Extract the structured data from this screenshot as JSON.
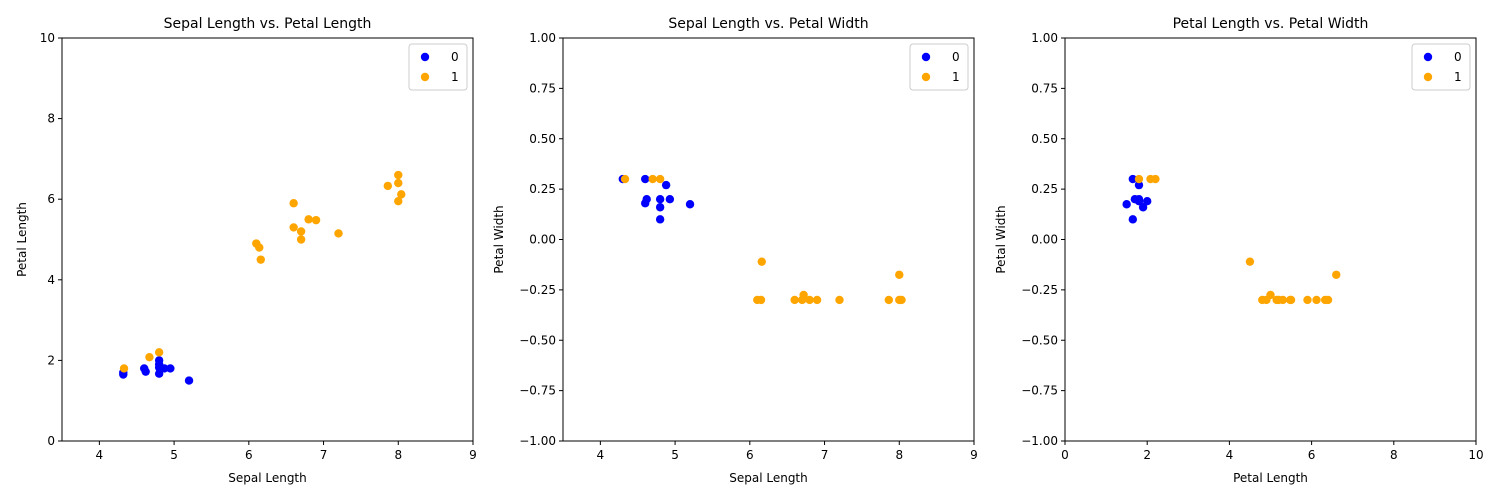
{
  "chart_data": [
    {
      "type": "scatter",
      "title": "Sepal Length vs. Petal Length",
      "xlabel": "Sepal Length",
      "ylabel": "Petal Length",
      "xlim": [
        3.5,
        9
      ],
      "ylim": [
        0,
        10
      ],
      "xticks": [
        4,
        5,
        6,
        7,
        8,
        9
      ],
      "yticks": [
        0,
        2,
        4,
        6,
        8,
        10
      ],
      "xtick_labels": [
        "4",
        "5",
        "6",
        "7",
        "8",
        "9"
      ],
      "ytick_labels": [
        "0",
        "2",
        "4",
        "6",
        "8",
        "10"
      ],
      "legend_position": "top-right",
      "grid": false,
      "series": [
        {
          "name": "0",
          "color": "#0000ff",
          "points": [
            [
              4.32,
              1.65
            ],
            [
              4.32,
              1.7
            ],
            [
              4.6,
              1.8
            ],
            [
              4.62,
              1.72
            ],
            [
              4.8,
              2.0
            ],
            [
              4.8,
              1.9
            ],
            [
              4.8,
              1.82
            ],
            [
              4.8,
              1.67
            ],
            [
              4.87,
              1.8
            ],
            [
              4.95,
              1.8
            ],
            [
              5.2,
              1.5
            ]
          ]
        },
        {
          "name": "1",
          "color": "#ffa500",
          "points": [
            [
              4.33,
              1.8
            ],
            [
              4.67,
              2.08
            ],
            [
              4.8,
              2.2
            ],
            [
              6.1,
              4.9
            ],
            [
              6.14,
              4.8
            ],
            [
              6.16,
              4.5
            ],
            [
              6.6,
              5.9
            ],
            [
              6.6,
              5.3
            ],
            [
              6.7,
              5.2
            ],
            [
              6.7,
              5.0
            ],
            [
              6.8,
              5.5
            ],
            [
              6.9,
              5.48
            ],
            [
              7.2,
              5.15
            ],
            [
              7.86,
              6.33
            ],
            [
              8.0,
              6.6
            ],
            [
              8.0,
              6.4
            ],
            [
              8.0,
              5.95
            ],
            [
              8.04,
              6.12
            ]
          ]
        }
      ]
    },
    {
      "type": "scatter",
      "title": "Sepal Length vs. Petal Width",
      "xlabel": "Sepal Length",
      "ylabel": "Petal Width",
      "xlim": [
        3.5,
        9
      ],
      "ylim": [
        -1,
        1
      ],
      "xticks": [
        4,
        5,
        6,
        7,
        8,
        9
      ],
      "yticks": [
        -1,
        -0.75,
        -0.5,
        -0.25,
        0,
        0.25,
        0.5,
        0.75,
        1
      ],
      "xtick_labels": [
        "4",
        "5",
        "6",
        "7",
        "8",
        "9"
      ],
      "ytick_labels": [
        "−1.00",
        "−0.75",
        "−0.50",
        "−0.25",
        "0.00",
        "0.25",
        "0.50",
        "0.75",
        "1.00"
      ],
      "legend_position": "top-right",
      "grid": false,
      "series": [
        {
          "name": "0",
          "color": "#0000ff",
          "points": [
            [
              4.3,
              0.3
            ],
            [
              4.6,
              0.3
            ],
            [
              4.62,
              0.2
            ],
            [
              4.6,
              0.18
            ],
            [
              4.8,
              0.2
            ],
            [
              4.8,
              0.16
            ],
            [
              4.8,
              0.1
            ],
            [
              4.88,
              0.27
            ],
            [
              4.93,
              0.2
            ],
            [
              5.2,
              0.175
            ]
          ]
        },
        {
          "name": "1",
          "color": "#ffa500",
          "points": [
            [
              4.33,
              0.3
            ],
            [
              4.7,
              0.3
            ],
            [
              4.8,
              0.3
            ],
            [
              6.16,
              -0.11
            ],
            [
              6.1,
              -0.3
            ],
            [
              6.15,
              -0.3
            ],
            [
              6.6,
              -0.3
            ],
            [
              6.7,
              -0.3
            ],
            [
              6.72,
              -0.275
            ],
            [
              6.8,
              -0.3
            ],
            [
              6.9,
              -0.3
            ],
            [
              7.2,
              -0.3
            ],
            [
              7.86,
              -0.3
            ],
            [
              8.0,
              -0.3
            ],
            [
              8.03,
              -0.3
            ],
            [
              8.0,
              -0.175
            ]
          ]
        }
      ]
    },
    {
      "type": "scatter",
      "title": "Petal Length vs. Petal Width",
      "xlabel": "Petal Length",
      "ylabel": "Petal Width",
      "xlim": [
        0,
        10
      ],
      "ylim": [
        -1,
        1
      ],
      "xticks": [
        0,
        2,
        4,
        6,
        8,
        10
      ],
      "yticks": [
        -1,
        -0.75,
        -0.5,
        -0.25,
        0,
        0.25,
        0.5,
        0.75,
        1
      ],
      "xtick_labels": [
        "0",
        "2",
        "4",
        "6",
        "8",
        "10"
      ],
      "ytick_labels": [
        "−1.00",
        "−0.75",
        "−0.50",
        "−0.25",
        "0.00",
        "0.25",
        "0.50",
        "0.75",
        "1.00"
      ],
      "legend_position": "top-right",
      "grid": false,
      "series": [
        {
          "name": "0",
          "color": "#0000ff",
          "points": [
            [
              1.5,
              0.175
            ],
            [
              1.65,
              0.3
            ],
            [
              1.65,
              0.1
            ],
            [
              1.7,
              0.2
            ],
            [
              1.8,
              0.27
            ],
            [
              1.8,
              0.2
            ],
            [
              1.8,
              0.19
            ],
            [
              1.9,
              0.16
            ],
            [
              2.0,
              0.19
            ]
          ]
        },
        {
          "name": "1",
          "color": "#ffa500",
          "points": [
            [
              1.8,
              0.3
            ],
            [
              2.08,
              0.3
            ],
            [
              2.2,
              0.3
            ],
            [
              4.5,
              -0.11
            ],
            [
              4.8,
              -0.3
            ],
            [
              4.9,
              -0.3
            ],
            [
              5.0,
              -0.275
            ],
            [
              5.15,
              -0.3
            ],
            [
              5.2,
              -0.3
            ],
            [
              5.3,
              -0.3
            ],
            [
              5.48,
              -0.3
            ],
            [
              5.5,
              -0.3
            ],
            [
              5.9,
              -0.3
            ],
            [
              6.12,
              -0.3
            ],
            [
              6.33,
              -0.3
            ],
            [
              6.4,
              -0.3
            ],
            [
              6.6,
              -0.175
            ]
          ]
        }
      ]
    }
  ]
}
